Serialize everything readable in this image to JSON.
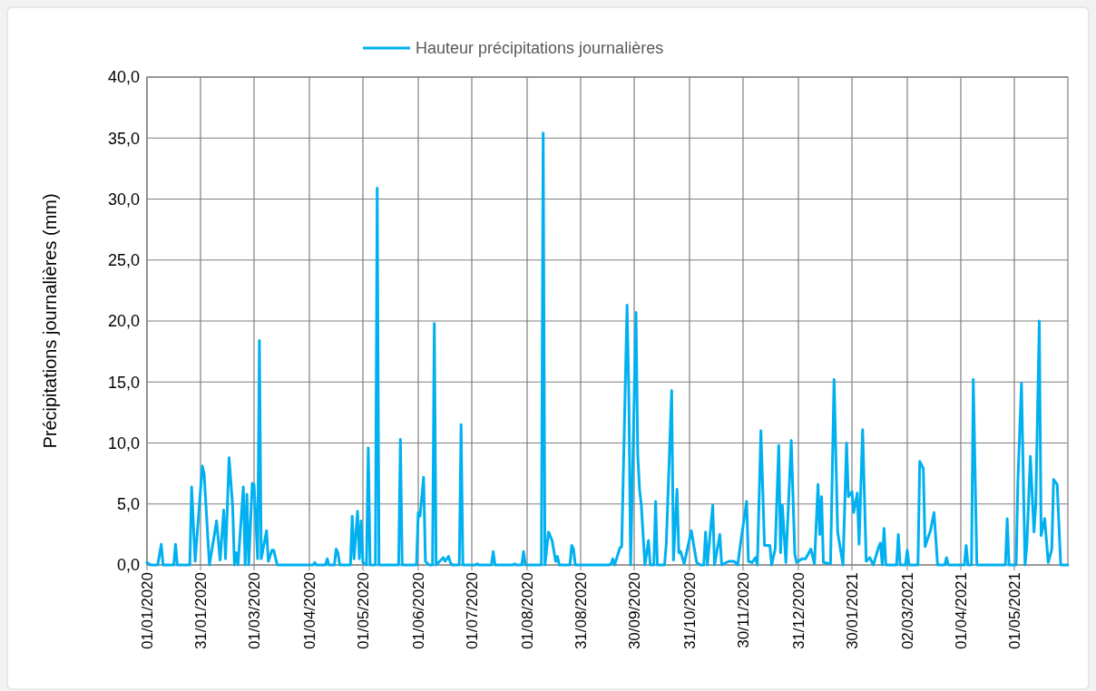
{
  "chart_data": {
    "type": "line",
    "ylabel": "Précipitations journalières (mm)",
    "legend": "top",
    "grid": true,
    "line_style": "solid",
    "xlim": [
      "2020-01-01",
      "2021-05-31"
    ],
    "xticks": [
      {
        "value": "2020-01-01",
        "label": "01/01/2020"
      },
      {
        "value": "2020-01-31",
        "label": "31/01/2020"
      },
      {
        "value": "2020-03-01",
        "label": "01/03/2020"
      },
      {
        "value": "2020-04-01",
        "label": "01/04/2020"
      },
      {
        "value": "2020-05-01",
        "label": "01/05/2020"
      },
      {
        "value": "2020-06-01",
        "label": "01/06/2020"
      },
      {
        "value": "2020-07-01",
        "label": "01/07/2020"
      },
      {
        "value": "2020-08-01",
        "label": "01/08/2020"
      },
      {
        "value": "2020-08-31",
        "label": "31/08/2020"
      },
      {
        "value": "2020-09-30",
        "label": "30/09/2020"
      },
      {
        "value": "2020-10-31",
        "label": "31/10/2020"
      },
      {
        "value": "2020-11-30",
        "label": "30/11/2020"
      },
      {
        "value": "2020-12-31",
        "label": "31/12/2020"
      },
      {
        "value": "2021-01-30",
        "label": "30/01/2021"
      },
      {
        "value": "2021-03-02",
        "label": "02/03/2021"
      },
      {
        "value": "2021-04-01",
        "label": "01/04/2021"
      },
      {
        "value": "2021-05-01",
        "label": "01/05/2021"
      }
    ],
    "ylim": [
      0,
      40
    ],
    "yticks": [
      {
        "value": 0,
        "label": "0,0"
      },
      {
        "value": 5,
        "label": "5,0"
      },
      {
        "value": 10,
        "label": "10,0"
      },
      {
        "value": 15,
        "label": "15,0"
      },
      {
        "value": 20,
        "label": "20,0"
      },
      {
        "value": 25,
        "label": "25,0"
      },
      {
        "value": 30,
        "label": "30,0"
      },
      {
        "value": 35,
        "label": "35,0"
      },
      {
        "value": 40,
        "label": "40,0"
      }
    ],
    "x": [
      "2020-01-01",
      "2020-01-03",
      "2020-01-07",
      "2020-01-09",
      "2020-01-10",
      "2020-01-16",
      "2020-01-17",
      "2020-01-18",
      "2020-01-25",
      "2020-01-26",
      "2020-01-28",
      "2020-02-01",
      "2020-02-02",
      "2020-02-05",
      "2020-02-09",
      "2020-02-11",
      "2020-02-13",
      "2020-02-14",
      "2020-02-16",
      "2020-02-18",
      "2020-02-19",
      "2020-02-20",
      "2020-02-21",
      "2020-02-24",
      "2020-02-25",
      "2020-02-26",
      "2020-02-27",
      "2020-02-29",
      "2020-03-01",
      "2020-03-03",
      "2020-03-04",
      "2020-03-05",
      "2020-03-08",
      "2020-03-09",
      "2020-03-11",
      "2020-03-12",
      "2020-03-14",
      "2020-04-03",
      "2020-04-04",
      "2020-04-05",
      "2020-04-10",
      "2020-04-11",
      "2020-04-12",
      "2020-04-15",
      "2020-04-16",
      "2020-04-17",
      "2020-04-18",
      "2020-04-24",
      "2020-04-25",
      "2020-04-26",
      "2020-04-28",
      "2020-04-29",
      "2020-04-30",
      "2020-05-01",
      "2020-05-03",
      "2020-05-04",
      "2020-05-05",
      "2020-05-08",
      "2020-05-09",
      "2020-05-10",
      "2020-05-21",
      "2020-05-22",
      "2020-05-23",
      "2020-05-31",
      "2020-06-01",
      "2020-06-02",
      "2020-06-04",
      "2020-06-05",
      "2020-06-07",
      "2020-06-09",
      "2020-06-10",
      "2020-06-11",
      "2020-06-15",
      "2020-06-16",
      "2020-06-18",
      "2020-06-19",
      "2020-06-20",
      "2020-06-24",
      "2020-06-25",
      "2020-06-26",
      "2020-07-03",
      "2020-07-04",
      "2020-07-05",
      "2020-07-12",
      "2020-07-13",
      "2020-07-14",
      "2020-07-24",
      "2020-07-25",
      "2020-07-26",
      "2020-07-29",
      "2020-07-30",
      "2020-07-31",
      "2020-08-09",
      "2020-08-10",
      "2020-08-11",
      "2020-08-13",
      "2020-08-15",
      "2020-08-17",
      "2020-08-18",
      "2020-08-19",
      "2020-08-25",
      "2020-08-26",
      "2020-08-27",
      "2020-08-28",
      "2020-09-16",
      "2020-09-17",
      "2020-09-18",
      "2020-09-19",
      "2020-09-22",
      "2020-09-23",
      "2020-09-26",
      "2020-09-27",
      "2020-09-28",
      "2020-10-01",
      "2020-10-02",
      "2020-10-03",
      "2020-10-04",
      "2020-10-06",
      "2020-10-08",
      "2020-10-09",
      "2020-10-11",
      "2020-10-12",
      "2020-10-13",
      "2020-10-17",
      "2020-10-18",
      "2020-10-21",
      "2020-10-22",
      "2020-10-24",
      "2020-10-25",
      "2020-10-26",
      "2020-10-28",
      "2020-11-01",
      "2020-11-04",
      "2020-11-06",
      "2020-11-08",
      "2020-11-09",
      "2020-11-10",
      "2020-11-13",
      "2020-11-14",
      "2020-11-17",
      "2020-11-18",
      "2020-11-22",
      "2020-11-25",
      "2020-11-27",
      "2020-11-29",
      "2020-12-02",
      "2020-12-03",
      "2020-12-05",
      "2020-12-07",
      "2020-12-08",
      "2020-12-10",
      "2020-12-12",
      "2020-12-13",
      "2020-12-15",
      "2020-12-16",
      "2020-12-18",
      "2020-12-20",
      "2020-12-21",
      "2020-12-22",
      "2020-12-24",
      "2020-12-27",
      "2020-12-29",
      "2020-12-30",
      "2021-01-02",
      "2021-01-04",
      "2021-01-07",
      "2021-01-09",
      "2021-01-11",
      "2021-01-12",
      "2021-01-13",
      "2021-01-14",
      "2021-01-18",
      "2021-01-20",
      "2021-01-22",
      "2021-01-25",
      "2021-01-27",
      "2021-01-28",
      "2021-01-30",
      "2021-01-31",
      "2021-02-02",
      "2021-02-03",
      "2021-02-05",
      "2021-02-07",
      "2021-02-09",
      "2021-02-11",
      "2021-02-14",
      "2021-02-15",
      "2021-02-16",
      "2021-02-17",
      "2021-02-18",
      "2021-02-24",
      "2021-02-25",
      "2021-02-26",
      "2021-03-01",
      "2021-03-02",
      "2021-03-03",
      "2021-03-08",
      "2021-03-09",
      "2021-03-11",
      "2021-03-12",
      "2021-03-14",
      "2021-03-15",
      "2021-03-17",
      "2021-03-19",
      "2021-03-23",
      "2021-03-24",
      "2021-03-25",
      "2021-04-03",
      "2021-04-04",
      "2021-04-05",
      "2021-04-07",
      "2021-04-08",
      "2021-04-10",
      "2021-04-26",
      "2021-04-27",
      "2021-04-28",
      "2021-05-02",
      "2021-05-03",
      "2021-05-05",
      "2021-05-07",
      "2021-05-08",
      "2021-05-10",
      "2021-05-12",
      "2021-05-13",
      "2021-05-15",
      "2021-05-16",
      "2021-05-18",
      "2021-05-20",
      "2021-05-22",
      "2021-05-23",
      "2021-05-25",
      "2021-05-27",
      "2021-05-31"
    ],
    "series": [
      {
        "name": "Hauteur précipitations journalières",
        "color": "#00b0f0",
        "values": [
          0.2,
          0,
          0,
          1.7,
          0,
          0,
          1.7,
          0,
          0,
          6.4,
          0.3,
          8.1,
          7.5,
          0,
          3.6,
          0.4,
          4.5,
          0.5,
          8.8,
          4.8,
          0,
          1.0,
          0,
          6.4,
          0,
          5.8,
          0,
          6.7,
          6.6,
          0.5,
          18.4,
          0.5,
          2.8,
          0.3,
          1.2,
          1.2,
          0,
          0,
          0.2,
          0,
          0,
          0.5,
          0,
          0,
          1.3,
          1.0,
          0,
          0,
          4.0,
          0.5,
          4.4,
          0.5,
          3.6,
          0.2,
          0,
          9.6,
          0,
          0,
          30.9,
          0,
          0,
          10.3,
          0,
          0,
          4.3,
          4.0,
          7.2,
          0.3,
          0,
          0,
          19.8,
          0,
          0.6,
          0.3,
          0.7,
          0.2,
          0,
          0,
          11.5,
          0,
          0,
          0.1,
          0,
          0,
          1.1,
          0,
          0,
          0.1,
          0,
          0,
          1.1,
          0,
          0,
          35.4,
          0,
          2.7,
          2.0,
          0.3,
          0.7,
          0,
          0,
          1.6,
          1.3,
          0,
          0,
          0.1,
          0.5,
          0,
          1.4,
          1.5,
          21.3,
          14.0,
          0,
          20.7,
          9.0,
          6.2,
          4.9,
          0,
          2.0,
          0,
          0,
          5.2,
          0,
          0,
          1.8,
          14.3,
          0.4,
          6.2,
          1.0,
          1.1,
          0.1,
          2.8,
          0.2,
          0,
          0,
          2.7,
          0,
          4.9,
          0,
          2.5,
          0,
          0.3,
          0.3,
          0,
          2.2,
          5.2,
          0.3,
          0.2,
          0.6,
          0,
          11.0,
          1.6,
          1.6,
          1.6,
          0,
          1.3,
          9.8,
          1.0,
          4.9,
          0.2,
          10.2,
          0.9,
          0.2,
          0.5,
          0.5,
          1.3,
          0.1,
          6.6,
          2.5,
          5.6,
          0.2,
          0.1,
          15.2,
          2.7,
          0,
          10.0,
          5.6,
          6.0,
          4.3,
          5.9,
          1.7,
          11.1,
          0.3,
          0.6,
          0,
          1.5,
          1.8,
          0,
          3.0,
          0,
          0,
          2.5,
          0,
          0,
          1.2,
          0,
          0,
          8.5,
          7.9,
          1.5,
          2.4,
          2.8,
          4.3,
          0,
          0,
          0.6,
          0,
          0,
          1.6,
          0,
          0,
          15.2,
          0,
          0,
          3.8,
          0,
          0,
          6.9,
          14.9,
          0,
          1.6,
          8.9,
          2.7,
          4.9,
          20.0,
          2.4,
          3.8,
          0.2,
          1.3,
          7.0,
          6.6,
          0,
          0
        ]
      }
    ]
  }
}
